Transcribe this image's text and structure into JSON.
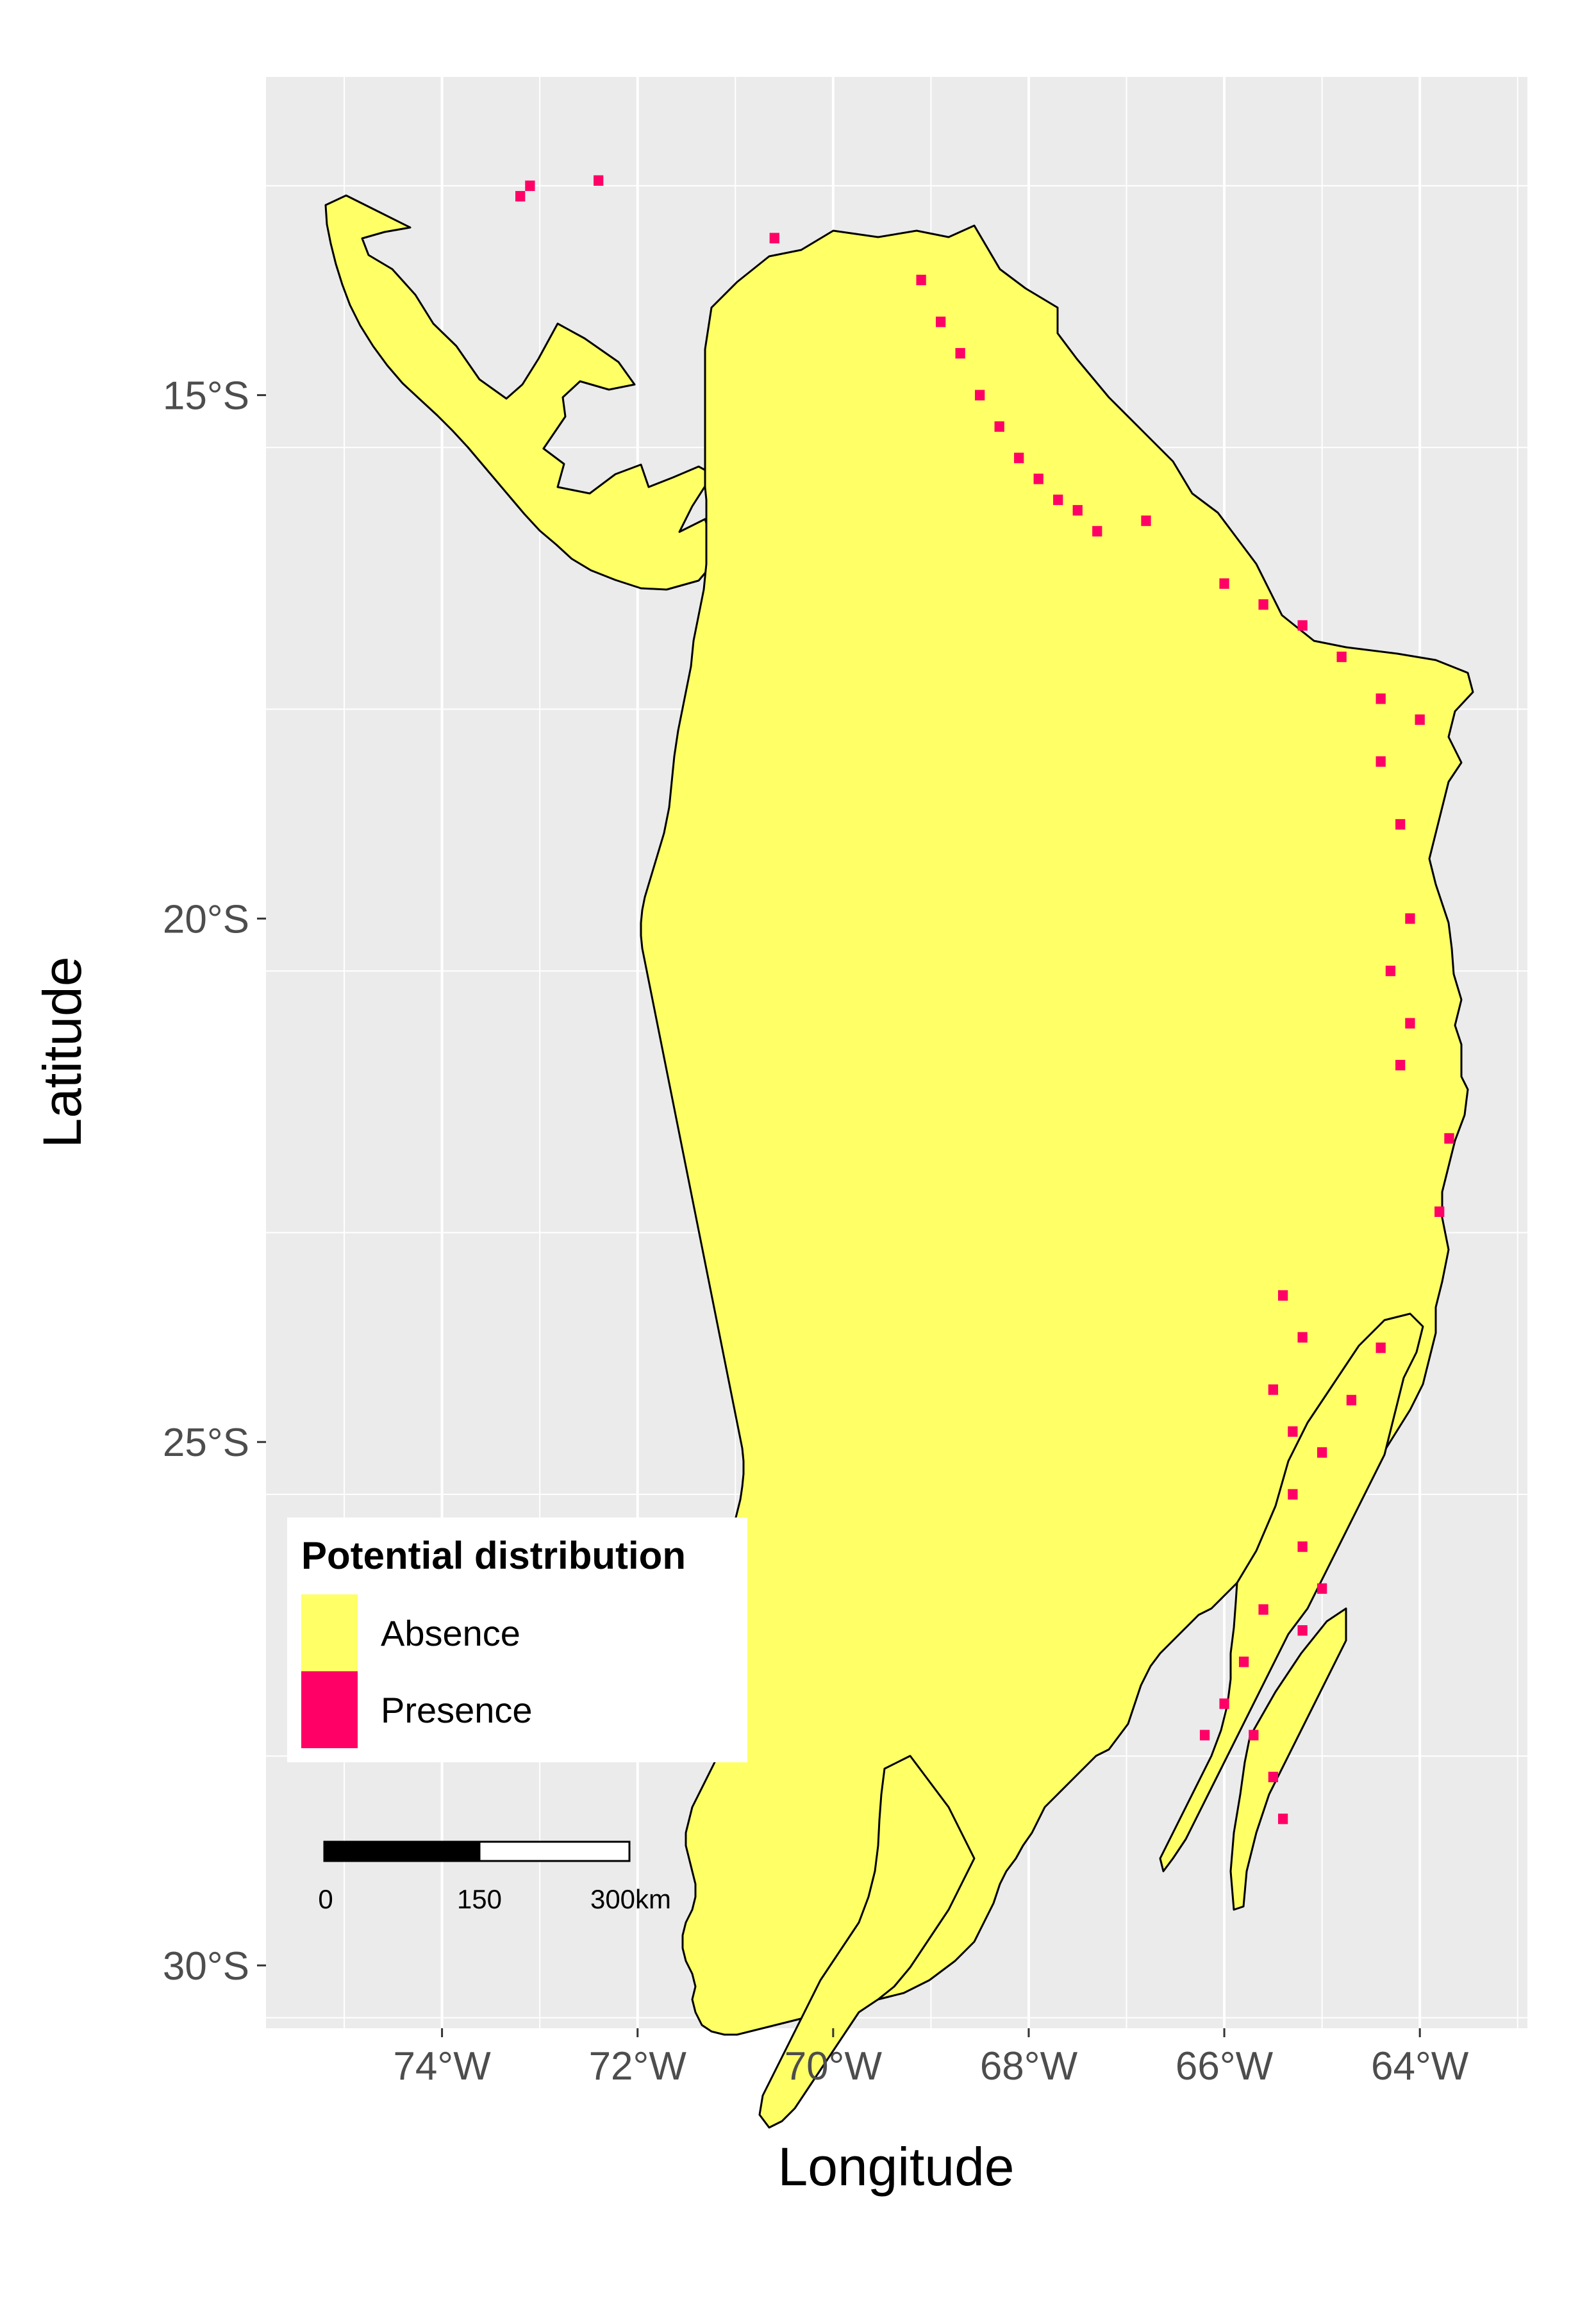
{
  "map": {
    "x_axis_title": "Longitude",
    "y_axis_title": "Latitude",
    "x_ticks": [
      "74°W",
      "72°W",
      "70°W",
      "68°W",
      "66°W",
      "64°W"
    ],
    "y_ticks": [
      "15°S",
      "20°S",
      "25°S",
      "30°S"
    ],
    "x_tick_values": [
      -74,
      -72,
      -70,
      -68,
      -66,
      -64
    ],
    "y_tick_values": [
      -15,
      -20,
      -25,
      -30
    ],
    "x_range": [
      -75.8,
      -62.9
    ],
    "y_range": [
      -30.6,
      -11.96
    ],
    "panel_background": "#ebebeb",
    "grid": true
  },
  "legend": {
    "title": "Potential distribution",
    "items": [
      {
        "label": "Absence",
        "color": "#ffff66"
      },
      {
        "label": "Presence",
        "color": "#ff0066"
      }
    ]
  },
  "scale_bar": {
    "labels": [
      "0",
      "150",
      "300km"
    ]
  },
  "presence_cells": [
    [
      -73.1,
      -13.0
    ],
    [
      -73.2,
      -13.1
    ],
    [
      -72.4,
      -12.95
    ],
    [
      -70.6,
      -13.5
    ],
    [
      -69.1,
      -13.9
    ],
    [
      -68.9,
      -14.3
    ],
    [
      -68.7,
      -14.6
    ],
    [
      -68.5,
      -15.0
    ],
    [
      -68.3,
      -15.3
    ],
    [
      -68.1,
      -15.6
    ],
    [
      -67.9,
      -15.8
    ],
    [
      -67.7,
      -16.0
    ],
    [
      -67.5,
      -16.1
    ],
    [
      -67.3,
      -16.3
    ],
    [
      -66.8,
      -16.2
    ],
    [
      -66.0,
      -16.8
    ],
    [
      -65.6,
      -17.0
    ],
    [
      -65.2,
      -17.2
    ],
    [
      -64.8,
      -17.5
    ],
    [
      -64.4,
      -17.9
    ],
    [
      -64.0,
      -18.1
    ],
    [
      -64.4,
      -18.5
    ],
    [
      -64.2,
      -19.1
    ],
    [
      -64.1,
      -20.0
    ],
    [
      -64.3,
      -20.5
    ],
    [
      -64.1,
      -21.0
    ],
    [
      -64.2,
      -21.4
    ],
    [
      -63.7,
      -22.1
    ],
    [
      -63.8,
      -22.8
    ],
    [
      -65.4,
      -23.6
    ],
    [
      -65.2,
      -24.0
    ],
    [
      -65.5,
      -24.5
    ],
    [
      -65.3,
      -24.9
    ],
    [
      -64.7,
      -24.6
    ],
    [
      -64.4,
      -24.1
    ],
    [
      -65.0,
      -25.1
    ],
    [
      -65.3,
      -25.5
    ],
    [
      -65.2,
      -26.0
    ],
    [
      -65.0,
      -26.4
    ],
    [
      -65.2,
      -26.8
    ],
    [
      -65.6,
      -26.6
    ],
    [
      -65.8,
      -27.1
    ],
    [
      -66.0,
      -27.5
    ],
    [
      -65.7,
      -27.8
    ],
    [
      -65.5,
      -28.2
    ],
    [
      -65.4,
      -28.6
    ],
    [
      -66.2,
      -27.8
    ]
  ],
  "colors": {
    "absence": "#ffff66",
    "presence": "#ff0066",
    "outline": "#000000",
    "grid": "#ffffff"
  }
}
